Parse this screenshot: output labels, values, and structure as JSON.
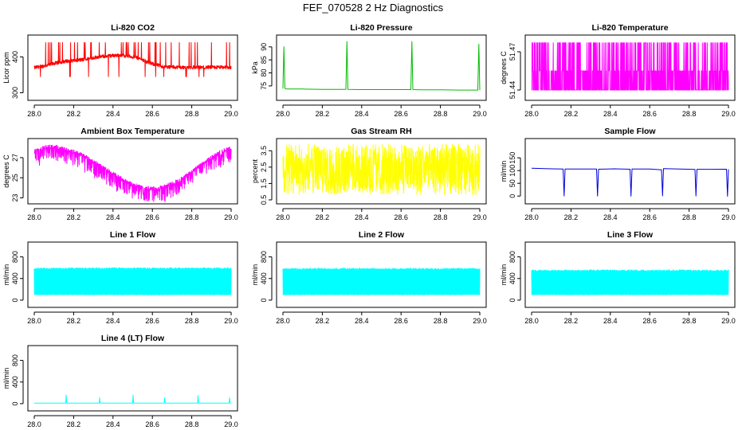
{
  "figure": {
    "title": "FEF_070528  2 Hz Diagnostics"
  },
  "chart_data": [
    {
      "type": "line",
      "title": "Li-820 CO2",
      "ylabel": "Licor ppm",
      "xlabel": "",
      "xlim": [
        28.0,
        29.0
      ],
      "ylim": [
        290,
        450
      ],
      "xticks": [
        28.0,
        28.2,
        28.4,
        28.6,
        28.8,
        29.0
      ],
      "xtick_labels": [
        "28.0",
        "28.2",
        "28.4",
        "28.6",
        "28.8",
        "29.0"
      ],
      "yticks": [
        300,
        400
      ],
      "ytick_labels": [
        "300",
        "400"
      ],
      "color": "#ff0000",
      "series": [
        {
          "x": [
            28.0,
            28.02,
            28.05,
            28.08,
            28.1,
            28.13,
            28.16,
            28.2,
            28.24,
            28.28,
            28.32,
            28.36,
            28.4,
            28.44,
            28.48,
            28.52,
            28.55,
            28.58,
            28.62,
            28.66,
            28.7,
            28.74,
            28.78,
            28.82,
            28.86,
            28.9,
            28.94,
            28.98,
            29.0
          ],
          "y": [
            370,
            372,
            375,
            378,
            382,
            385,
            388,
            390,
            392,
            395,
            400,
            402,
            404,
            405,
            402,
            398,
            392,
            384,
            378,
            372,
            372,
            371,
            371,
            371,
            371,
            371,
            371,
            371,
            370
          ]
        }
      ]
    },
    {
      "type": "line",
      "title": "Li-820 Pressure",
      "ylabel": "kPa",
      "xlabel": "",
      "xlim": [
        28.0,
        29.0
      ],
      "ylim": [
        71,
        93
      ],
      "xticks": [
        28.0,
        28.2,
        28.4,
        28.6,
        28.8,
        29.0
      ],
      "xtick_labels": [
        "28.0",
        "28.2",
        "28.4",
        "28.6",
        "28.8",
        "29.0"
      ],
      "yticks": [
        75,
        80,
        85,
        90
      ],
      "ytick_labels": [
        "75",
        "80",
        "85",
        "90"
      ],
      "color": "#00bb00",
      "series": [
        {
          "x": [
            28.0,
            28.005,
            28.01,
            28.02,
            28.1,
            28.2,
            28.32,
            28.325,
            28.33,
            28.4,
            28.5,
            28.65,
            28.655,
            28.66,
            28.7,
            28.8,
            28.9,
            28.99,
            28.995,
            29.0
          ],
          "y": [
            74,
            90,
            74,
            73.8,
            73.8,
            73.7,
            73.7,
            92,
            73.7,
            73.6,
            73.6,
            73.6,
            92,
            73.6,
            73.5,
            73.5,
            73.4,
            73.4,
            91,
            73.4
          ]
        }
      ]
    },
    {
      "type": "line",
      "title": "Li-820 Temperature",
      "ylabel": "degrees C",
      "xlabel": "",
      "xlim": [
        28.0,
        29.0
      ],
      "ylim": [
        51.435,
        51.48
      ],
      "xticks": [
        28.0,
        28.2,
        28.4,
        28.6,
        28.8,
        29.0
      ],
      "xtick_labels": [
        "28.0",
        "28.2",
        "28.4",
        "28.6",
        "28.8",
        "29.0"
      ],
      "yticks": [
        51.44,
        51.47
      ],
      "ytick_labels": [
        "51.44",
        "51.47"
      ],
      "color": "#ff00ff",
      "series": [
        {
          "x": [
            28.0,
            29.0
          ],
          "y": [
            51.44,
            51.47
          ]
        }
      ]
    },
    {
      "type": "line",
      "title": "Ambient Box Temperature",
      "ylabel": "degrees C",
      "xlabel": "",
      "xlim": [
        28.0,
        29.0
      ],
      "ylim": [
        22.8,
        28.5
      ],
      "xticks": [
        28.0,
        28.2,
        28.4,
        28.6,
        28.8,
        29.0
      ],
      "xtick_labels": [
        "28.0",
        "28.2",
        "28.4",
        "28.6",
        "28.8",
        "29.0"
      ],
      "yticks": [
        23,
        25,
        27
      ],
      "ytick_labels": [
        "23",
        "25",
        "27"
      ],
      "color": "#ff00ff",
      "series": [
        {
          "x": [
            28.0,
            28.05,
            28.1,
            28.15,
            28.2,
            28.25,
            28.3,
            28.35,
            28.4,
            28.45,
            28.5,
            28.55,
            28.6,
            28.65,
            28.7,
            28.75,
            28.8,
            28.85,
            28.9,
            28.95,
            29.0
          ],
          "y": [
            27.6,
            28.0,
            28.1,
            27.9,
            27.6,
            27.2,
            26.6,
            26.0,
            25.4,
            24.8,
            24.3,
            24.0,
            23.9,
            24.0,
            24.4,
            24.9,
            25.6,
            26.3,
            27.0,
            27.6,
            28.0
          ]
        }
      ]
    },
    {
      "type": "line",
      "title": "Gas Stream RH",
      "ylabel": "percent",
      "xlabel": "",
      "xlim": [
        28.0,
        29.0
      ],
      "ylim": [
        0.5,
        4.0
      ],
      "xticks": [
        28.0,
        28.2,
        28.4,
        28.6,
        28.8,
        29.0
      ],
      "xtick_labels": [
        "28.0",
        "28.2",
        "28.4",
        "28.6",
        "28.8",
        "29.0"
      ],
      "yticks": [
        0.5,
        1.5,
        2.5,
        3.5
      ],
      "ytick_labels": [
        "0.5",
        "1.5",
        "2.5",
        "3.5"
      ],
      "color": "#ffff00",
      "series": [
        {
          "x": [
            28.0,
            29.0
          ],
          "y": [
            0.8,
            3.9
          ]
        }
      ]
    },
    {
      "type": "line",
      "title": "Sample Flow",
      "ylabel": "ml/min",
      "xlabel": "",
      "xlim": [
        28.0,
        29.0
      ],
      "ylim": [
        -15,
        210
      ],
      "xticks": [
        28.0,
        28.2,
        28.4,
        28.6,
        28.8,
        29.0
      ],
      "xtick_labels": [
        "28.0",
        "28.2",
        "28.4",
        "28.6",
        "28.8",
        "29.0"
      ],
      "yticks": [
        0,
        50,
        100,
        150
      ],
      "ytick_labels": [
        "0",
        "50",
        "100",
        "150"
      ],
      "color": "#0000dd",
      "series": [
        {
          "x": [
            28.0,
            28.1,
            28.16,
            28.165,
            28.17,
            28.25,
            28.33,
            28.335,
            28.34,
            28.42,
            28.5,
            28.505,
            28.51,
            28.6,
            28.66,
            28.665,
            28.67,
            28.75,
            28.83,
            28.835,
            28.84,
            28.92,
            28.99,
            28.995,
            29.0
          ],
          "y": [
            108,
            106,
            105,
            0,
            107,
            107,
            106,
            0,
            106,
            107,
            106,
            0,
            107,
            106,
            104,
            0,
            107,
            106,
            105,
            0,
            106,
            105,
            105,
            0,
            105
          ]
        }
      ]
    },
    {
      "type": "line",
      "title": "Line 1 Flow",
      "ylabel": "ml/min",
      "xlabel": "",
      "xlim": [
        28.0,
        29.0
      ],
      "ylim": [
        -60,
        1000
      ],
      "xticks": [
        28.0,
        28.2,
        28.4,
        28.6,
        28.8,
        29.0
      ],
      "xtick_labels": [
        "28.0",
        "28.2",
        "28.4",
        "28.6",
        "28.8",
        "29.0"
      ],
      "yticks": [
        0,
        400,
        800
      ],
      "ytick_labels": [
        "0",
        "400",
        "800"
      ],
      "color": "#00ffff",
      "series": [
        {
          "x": [
            28.0,
            29.0
          ],
          "y": [
            100,
            600
          ]
        }
      ]
    },
    {
      "type": "line",
      "title": "Line 2 Flow",
      "ylabel": "ml/min",
      "xlabel": "",
      "xlim": [
        28.0,
        29.0
      ],
      "ylim": [
        -60,
        1000
      ],
      "xticks": [
        28.0,
        28.2,
        28.4,
        28.6,
        28.8,
        29.0
      ],
      "xtick_labels": [
        "28.0",
        "28.2",
        "28.4",
        "28.6",
        "28.8",
        "29.0"
      ],
      "yticks": [
        0,
        400,
        800
      ],
      "ytick_labels": [
        "0",
        "400",
        "800"
      ],
      "color": "#00ffff",
      "series": [
        {
          "x": [
            28.0,
            29.0
          ],
          "y": [
            100,
            590
          ]
        }
      ]
    },
    {
      "type": "line",
      "title": "Line 3 Flow",
      "ylabel": "ml/min",
      "xlabel": "",
      "xlim": [
        28.0,
        29.0
      ],
      "ylim": [
        -60,
        1000
      ],
      "xticks": [
        28.0,
        28.2,
        28.4,
        28.6,
        28.8,
        29.0
      ],
      "xtick_labels": [
        "28.0",
        "28.2",
        "28.4",
        "28.6",
        "28.8",
        "29.0"
      ],
      "yticks": [
        0,
        400,
        800
      ],
      "ytick_labels": [
        "0",
        "400",
        "800"
      ],
      "color": "#00ffff",
      "series": [
        {
          "x": [
            28.0,
            29.0
          ],
          "y": [
            100,
            560
          ]
        }
      ]
    },
    {
      "type": "line",
      "title": "Line 4 (LT) Flow",
      "ylabel": "ml/min",
      "xlabel": "",
      "xlim": [
        28.0,
        29.0
      ],
      "ylim": [
        -60,
        1000
      ],
      "xticks": [
        28.0,
        28.2,
        28.4,
        28.6,
        28.8,
        29.0
      ],
      "xtick_labels": [
        "28.0",
        "28.2",
        "28.4",
        "28.6",
        "28.8",
        "29.0"
      ],
      "yticks": [
        0,
        400,
        800
      ],
      "ytick_labels": [
        "0",
        "400",
        "800"
      ],
      "color": "#00ffff",
      "series": [
        {
          "x": [
            28.0,
            28.16,
            28.162,
            28.165,
            28.33,
            28.332,
            28.335,
            28.5,
            28.502,
            28.505,
            28.66,
            28.662,
            28.665,
            28.83,
            28.832,
            28.835,
            28.99,
            28.992,
            28.995,
            29.0
          ],
          "y": [
            10,
            10,
            160,
            10,
            10,
            110,
            10,
            10,
            160,
            10,
            10,
            110,
            10,
            10,
            150,
            10,
            10,
            110,
            10,
            10
          ]
        }
      ]
    }
  ]
}
